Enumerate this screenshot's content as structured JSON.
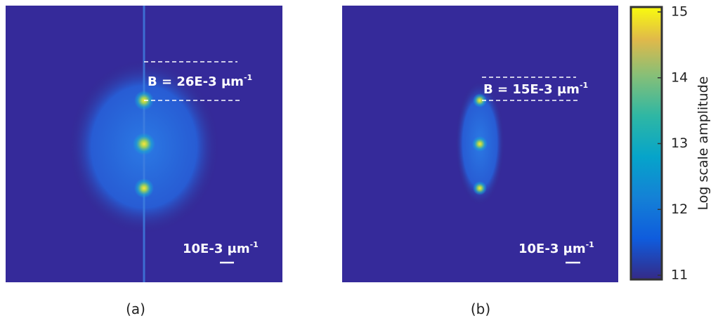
{
  "panels": [
    {
      "annotation": {
        "text": "B = 26E-3 μm",
        "sup": "-1"
      },
      "scale_label": {
        "text": "10E-3 μm",
        "sup": "-1"
      },
      "caption": "(a)"
    },
    {
      "annotation": {
        "text": "B = 15E-3 μm",
        "sup": "-1"
      },
      "scale_label": {
        "text": "10E-3 μm",
        "sup": "-1"
      },
      "caption": "(b)"
    }
  ],
  "colorbar": {
    "label": "Log scale amplitude",
    "lim": [
      11,
      15
    ],
    "ticks": [
      11,
      12,
      13,
      14,
      15
    ]
  }
}
